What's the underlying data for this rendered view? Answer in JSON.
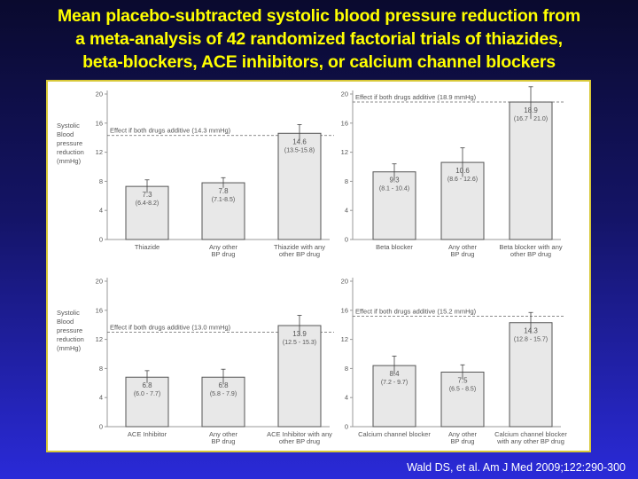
{
  "title": {
    "lines": [
      "Mean placebo-subtracted systolic blood pressure reduction from",
      "a meta-analysis of 42 randomized factorial trials of thiazides,",
      "beta-blockers, ACE inhibitors, or calcium channel blockers"
    ]
  },
  "citation": "Wald DS, et al. Am J Med 2009;122:290-300",
  "colors": {
    "title": "#ffff00",
    "bar_fill": "#e8e8e8",
    "bar_stroke": "#555555"
  },
  "chart_data": [
    {
      "type": "bar",
      "ylabel": [
        "Systolic",
        "Blood",
        "pressure",
        "reduction",
        "(mmHg)"
      ],
      "ylim": [
        0,
        20
      ],
      "yticks": [
        0,
        4,
        8,
        12,
        16,
        20
      ],
      "additive_line": {
        "value": 14.3,
        "label": "Effect if both drugs additive (14.3 mmHg)"
      },
      "bars": [
        {
          "category": [
            "Thiazide"
          ],
          "value": 7.3,
          "value_label": "7.3",
          "ci": [
            6.4,
            8.2
          ],
          "ci_label": "(6.4-8.2)"
        },
        {
          "category": [
            "Any other",
            "BP drug"
          ],
          "value": 7.8,
          "value_label": "7.8",
          "ci": [
            7.1,
            8.5
          ],
          "ci_label": "(7.1-8.5)"
        },
        {
          "category": [
            "Thiazide with any",
            "other BP drug"
          ],
          "value": 14.6,
          "value_label": "14.6",
          "ci": [
            13.5,
            15.8
          ],
          "ci_label": "(13.5-15.8)"
        }
      ]
    },
    {
      "type": "bar",
      "ylim": [
        0,
        20
      ],
      "yticks": [
        0,
        4,
        8,
        12,
        16,
        20
      ],
      "additive_line": {
        "value": 18.9,
        "label": "Effect if both drugs additive (18.9 mmHg)"
      },
      "bars": [
        {
          "category": [
            "Beta blocker"
          ],
          "value": 9.3,
          "value_label": "9.3",
          "ci": [
            8.1,
            10.4
          ],
          "ci_label": "(8.1 - 10.4)"
        },
        {
          "category": [
            "Any other",
            "BP drug"
          ],
          "value": 10.6,
          "value_label": "10.6",
          "ci": [
            8.6,
            12.6
          ],
          "ci_label": "(8.6 - 12.6)"
        },
        {
          "category": [
            "Beta blocker with any",
            "other BP drug"
          ],
          "value": 18.9,
          "value_label": "18.9",
          "ci": [
            16.7,
            21.0
          ],
          "ci_label": "(16.7 - 21.0)"
        }
      ]
    },
    {
      "type": "bar",
      "ylabel": [
        "Systolic",
        "Blood",
        "pressure",
        "reduction",
        "(mmHg)"
      ],
      "ylim": [
        0,
        20
      ],
      "yticks": [
        0,
        4,
        8,
        12,
        16,
        20
      ],
      "additive_line": {
        "value": 13.0,
        "label": "Effect if both drugs additive (13.0 mmHg)"
      },
      "bars": [
        {
          "category": [
            "ACE Inhibitor"
          ],
          "value": 6.8,
          "value_label": "6.8",
          "ci": [
            6.0,
            7.7
          ],
          "ci_label": "(6.0 - 7.7)"
        },
        {
          "category": [
            "Any other",
            "BP drug"
          ],
          "value": 6.8,
          "value_label": "6.8",
          "ci": [
            5.8,
            7.9
          ],
          "ci_label": "(5.8 - 7.9)"
        },
        {
          "category": [
            "ACE Inhibitor with any",
            "other BP drug"
          ],
          "value": 13.9,
          "value_label": "13.9",
          "ci": [
            12.5,
            15.3
          ],
          "ci_label": "(12.5 - 15.3)"
        }
      ]
    },
    {
      "type": "bar",
      "ylim": [
        0,
        20
      ],
      "yticks": [
        0,
        4,
        8,
        12,
        16,
        20
      ],
      "additive_line": {
        "value": 15.2,
        "label": "Effect if both drugs additive (15.2 mmHg)"
      },
      "bars": [
        {
          "category": [
            "Calcium channel blocker"
          ],
          "value": 8.4,
          "value_label": "8.4",
          "ci": [
            7.2,
            9.7
          ],
          "ci_label": "(7.2 - 9.7)"
        },
        {
          "category": [
            "Any other",
            "BP drug"
          ],
          "value": 7.5,
          "value_label": "7.5",
          "ci": [
            6.5,
            8.5
          ],
          "ci_label": "(6.5 - 8.5)"
        },
        {
          "category": [
            "Calcium channel blocker",
            "with any other BP drug"
          ],
          "value": 14.3,
          "value_label": "14.3",
          "ci": [
            12.8,
            15.7
          ],
          "ci_label": "(12.8 - 15.7)"
        }
      ]
    }
  ]
}
